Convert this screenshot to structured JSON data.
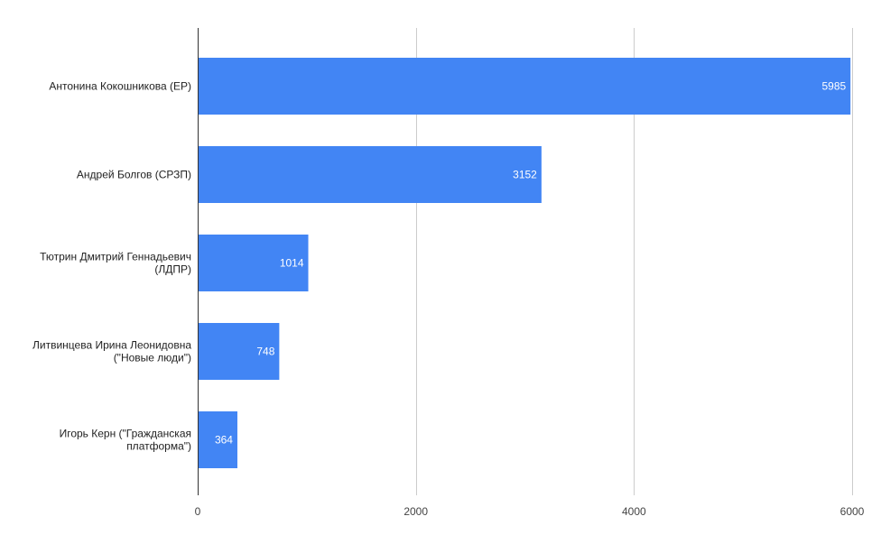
{
  "chart_data": {
    "type": "bar",
    "orientation": "horizontal",
    "categories": [
      [
        "Антонина Кокошникова (ЕР)"
      ],
      [
        "Андрей Болгов (СРЗП)"
      ],
      [
        "Тютрин Дмитрий Геннадьевич",
        "(ЛДПР)"
      ],
      [
        "Литвинцева Ирина Леонидовна",
        "(\"Новые люди\")"
      ],
      [
        "Игорь Керн (\"Гражданская",
        "платформа\")"
      ]
    ],
    "values": [
      5985,
      3152,
      1014,
      748,
      364
    ],
    "data_labels": [
      "5985",
      "3152",
      "1014",
      "748",
      "364"
    ],
    "xlim": [
      0,
      6000
    ],
    "x_ticks": [
      0,
      2000,
      4000,
      6000
    ],
    "x_tick_labels": [
      "0",
      "2000",
      "4000",
      "6000"
    ],
    "grid": true,
    "legend": "none",
    "colors": {
      "bar": "#4285f4",
      "grid": "#cccccc",
      "axis": "#333333"
    }
  }
}
